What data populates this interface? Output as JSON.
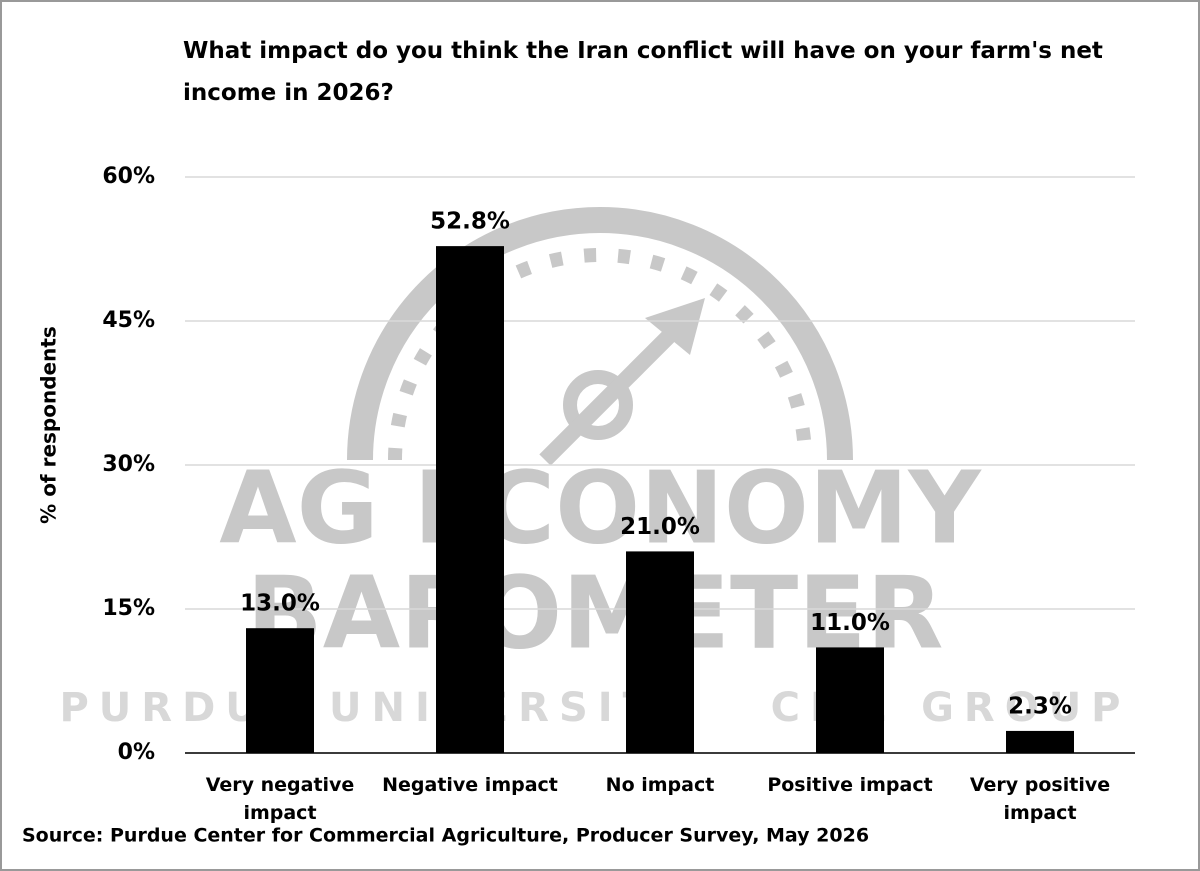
{
  "chart_data": {
    "type": "bar",
    "title": "What impact do you think the Iran conflict will have on your farm's net income in 2026?",
    "y_label": "% of respondents",
    "source": "Source: Purdue Center for Commercial Agriculture, Producer Survey, May 2026",
    "watermark": [
      "AG ECONOMY",
      "BAROMETER",
      "PURDUE UNIVERSITY   CME GROUP"
    ],
    "categories": [
      "Very negative impact",
      "Negative impact",
      "No impact",
      "Positive impact",
      "Very positive impact"
    ],
    "values": [
      13.0,
      52.8,
      21.0,
      11.0,
      2.3
    ],
    "value_labels": [
      "13.0%",
      "52.8%",
      "21.0%",
      "11.0%",
      "2.3%"
    ],
    "color": "#000000",
    "ylim": [
      0,
      60
    ],
    "yticks": [
      {
        "value": 0,
        "label": "0%"
      },
      {
        "value": 15,
        "label": "15%"
      },
      {
        "value": 30,
        "label": "30%"
      },
      {
        "value": 45,
        "label": "45%"
      },
      {
        "value": 60,
        "label": "60%"
      }
    ],
    "grid": true
  }
}
